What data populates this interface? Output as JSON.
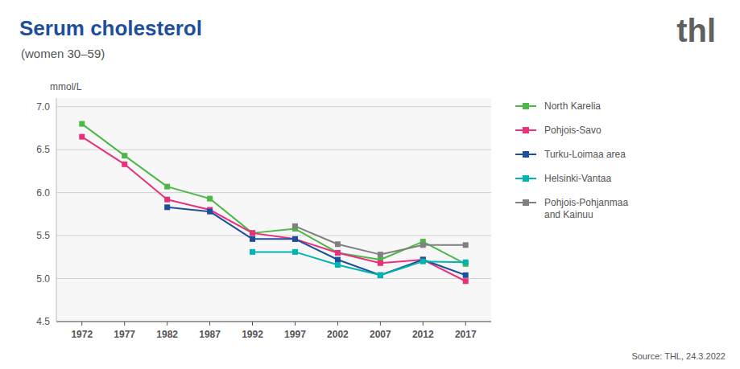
{
  "chart_data": {
    "type": "line",
    "title": "Serum cholesterol",
    "subtitle": "(women 30–59)",
    "y_label": "mmol/L",
    "annotations": [
      "Source: THL, 24.3.2022",
      "thl"
    ],
    "x": [
      1972,
      1977,
      1982,
      1987,
      1992,
      1997,
      2002,
      2007,
      2012,
      2017
    ],
    "series": [
      {
        "name": "North Karelia",
        "color": "#4db848",
        "values": [
          6.8,
          6.43,
          6.07,
          5.93,
          5.53,
          5.58,
          5.3,
          5.22,
          5.43,
          5.17
        ]
      },
      {
        "name": "Pohjois-Savo",
        "color": "#e8317a",
        "values": [
          6.65,
          6.33,
          5.92,
          5.8,
          5.53,
          5.46,
          5.3,
          5.18,
          5.22,
          4.97
        ]
      },
      {
        "name": "Turku-Loimaa area",
        "color": "#1e4f9c",
        "values": [
          null,
          null,
          5.83,
          5.78,
          5.46,
          5.46,
          5.22,
          5.04,
          5.22,
          5.04
        ]
      },
      {
        "name": "Helsinki-Vantaa",
        "color": "#00b5b1",
        "values": [
          null,
          null,
          null,
          null,
          5.31,
          5.31,
          5.16,
          5.04,
          5.2,
          5.19
        ]
      },
      {
        "name": "Pohjois-Pohjanmaa\nand Kainuu",
        "color": "#808080",
        "values": [
          null,
          null,
          null,
          null,
          null,
          5.61,
          5.4,
          5.28,
          5.39,
          5.39
        ]
      }
    ],
    "xlim": [
      1969,
      2020
    ],
    "xticks": [
      1972,
      1977,
      1982,
      1987,
      1992,
      1997,
      2002,
      2007,
      2012,
      2017
    ],
    "ylim": [
      4.5,
      7.1
    ],
    "yticks": [
      4.5,
      {
        "value": 5,
        "label": "5.0"
      },
      5.5,
      {
        "value": 6,
        "label": "6.0"
      },
      6.5,
      {
        "value": 7,
        "label": "7.0"
      }
    ],
    "grid": true,
    "legend": "right",
    "marker": "square"
  }
}
